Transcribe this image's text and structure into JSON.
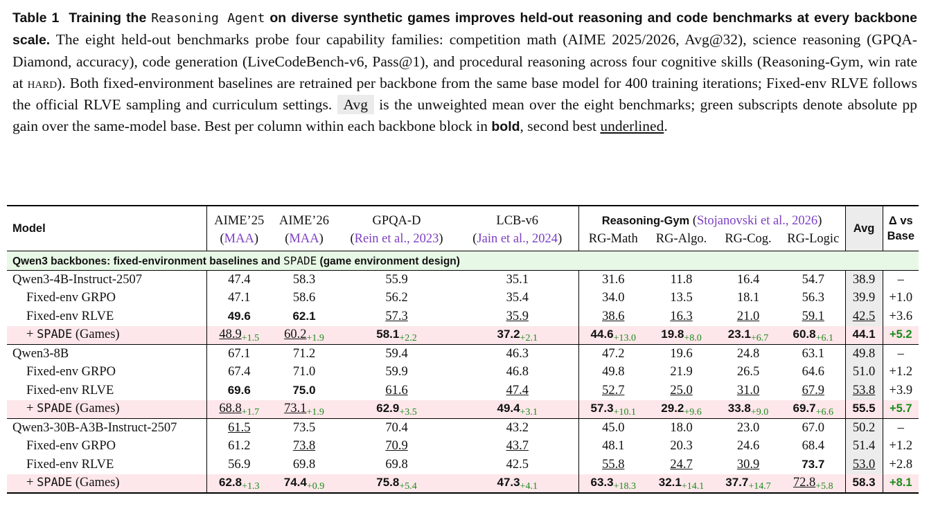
{
  "caption": {
    "label": "Table 1",
    "title_pre": "Training the",
    "title_mono": "Reasoning Agent",
    "title_post": "on diverse synthetic games improves held-out reasoning and code benchmarks at every backbone scale.",
    "body_1": "The eight held-out benchmarks probe four capability families: competition math (AIME 2025/2026, Avg@32), science reasoning (GPQA-Diamond, accuracy), code generation (LiveCodeBench-v6, Pass@1), and procedural reasoning across four cognitive skills (Reasoning-Gym, win rate at",
    "hard": "hard",
    "body_2": "). Both fixed-environment baselines are retrained per backbone from the same base model for 400 training iterations; Fixed-env RLVE follows the official RLVE sampling and curriculum settings.",
    "avg_label": "Avg",
    "body_3": "is the unweighted mean over the eight benchmarks; green subscripts denote absolute pp gain over the same-model base. Best per column within each backbone block in",
    "bold_word": "bold",
    "body_4": ", second best",
    "underlined_word": "underlined",
    "body_5": "."
  },
  "header": {
    "model": "Model",
    "aime25": "AIME’25",
    "aime25_cite": "MAA",
    "aime26": "AIME’26",
    "aime26_cite": "MAA",
    "gpqa": "GPQA-D",
    "gpqa_cite": "Rein et al., 2023",
    "lcb": "LCB-v6",
    "lcb_cite": "Jain et al., 2024",
    "rg": "Reasoning-Gym",
    "rg_cite": "Stojanovski et al., 2026",
    "rg_math": "RG-Math",
    "rg_algo": "RG-Algo.",
    "rg_cog": "RG-Cog.",
    "rg_logic": "RG-Logic",
    "avg": "Avg",
    "delta_1": "Δ vs",
    "delta_2": "Base"
  },
  "section": {
    "pre": "Qwen3 backbones: fixed-environment baselines and",
    "mono": "SPADE",
    "post": "(game environment design)"
  },
  "spade_label": {
    "plus": "+",
    "mono": "SPADE",
    "post": "(Games)"
  },
  "blocks": [
    {
      "rows": [
        {
          "name": "Qwen3-4B-Instruct-2507",
          "indent": false,
          "spade": false,
          "cells": [
            {
              "v": "47.4"
            },
            {
              "v": "58.3"
            },
            {
              "v": "55.9"
            },
            {
              "v": "35.1"
            },
            {
              "v": "31.6"
            },
            {
              "v": "11.8"
            },
            {
              "v": "16.4"
            },
            {
              "v": "54.7"
            }
          ],
          "avg": {
            "v": "38.9"
          },
          "delta": "–"
        },
        {
          "name": "Fixed-env GRPO",
          "indent": true,
          "spade": false,
          "cells": [
            {
              "v": "47.1"
            },
            {
              "v": "58.6"
            },
            {
              "v": "56.2"
            },
            {
              "v": "35.4"
            },
            {
              "v": "34.0"
            },
            {
              "v": "13.5"
            },
            {
              "v": "18.1"
            },
            {
              "v": "56.3"
            }
          ],
          "avg": {
            "v": "39.9"
          },
          "delta": "+1.0"
        },
        {
          "name": "Fixed-env RLVE",
          "indent": true,
          "spade": false,
          "cells": [
            {
              "v": "49.6",
              "s": "b"
            },
            {
              "v": "62.1",
              "s": "b"
            },
            {
              "v": "57.3",
              "s": "u"
            },
            {
              "v": "35.9",
              "s": "u"
            },
            {
              "v": "38.6",
              "s": "u"
            },
            {
              "v": "16.3",
              "s": "u"
            },
            {
              "v": "21.0",
              "s": "u"
            },
            {
              "v": "59.1",
              "s": "u"
            }
          ],
          "avg": {
            "v": "42.5",
            "s": "u"
          },
          "delta": "+3.6"
        },
        {
          "name": "",
          "indent": true,
          "spade": true,
          "cells": [
            {
              "v": "48.9",
              "s": "u",
              "g": "+1.5"
            },
            {
              "v": "60.2",
              "s": "u",
              "g": "+1.9"
            },
            {
              "v": "58.1",
              "s": "b",
              "g": "+2.2"
            },
            {
              "v": "37.2",
              "s": "b",
              "g": "+2.1"
            },
            {
              "v": "44.6",
              "s": "b",
              "g": "+13.0"
            },
            {
              "v": "19.8",
              "s": "b",
              "g": "+8.0"
            },
            {
              "v": "23.1",
              "s": "b",
              "g": "+6.7"
            },
            {
              "v": "60.8",
              "s": "b",
              "g": "+6.1"
            }
          ],
          "avg": {
            "v": "44.1",
            "s": "b"
          },
          "delta": "+5.2"
        }
      ]
    },
    {
      "rows": [
        {
          "name": "Qwen3-8B",
          "indent": false,
          "spade": false,
          "cells": [
            {
              "v": "67.1"
            },
            {
              "v": "71.2"
            },
            {
              "v": "59.4"
            },
            {
              "v": "46.3"
            },
            {
              "v": "47.2"
            },
            {
              "v": "19.6"
            },
            {
              "v": "24.8"
            },
            {
              "v": "63.1"
            }
          ],
          "avg": {
            "v": "49.8"
          },
          "delta": "–"
        },
        {
          "name": "Fixed-env GRPO",
          "indent": true,
          "spade": false,
          "cells": [
            {
              "v": "67.4"
            },
            {
              "v": "71.0"
            },
            {
              "v": "59.9"
            },
            {
              "v": "46.8"
            },
            {
              "v": "49.8"
            },
            {
              "v": "21.9"
            },
            {
              "v": "26.5"
            },
            {
              "v": "64.6"
            }
          ],
          "avg": {
            "v": "51.0"
          },
          "delta": "+1.2"
        },
        {
          "name": "Fixed-env RLVE",
          "indent": true,
          "spade": false,
          "cells": [
            {
              "v": "69.6",
              "s": "b"
            },
            {
              "v": "75.0",
              "s": "b"
            },
            {
              "v": "61.6",
              "s": "u"
            },
            {
              "v": "47.4",
              "s": "u"
            },
            {
              "v": "52.7",
              "s": "u"
            },
            {
              "v": "25.0",
              "s": "u"
            },
            {
              "v": "31.0",
              "s": "u"
            },
            {
              "v": "67.9",
              "s": "u"
            }
          ],
          "avg": {
            "v": "53.8",
            "s": "u"
          },
          "delta": "+3.9"
        },
        {
          "name": "",
          "indent": true,
          "spade": true,
          "cells": [
            {
              "v": "68.8",
              "s": "u",
              "g": "+1.7"
            },
            {
              "v": "73.1",
              "s": "u",
              "g": "+1.9"
            },
            {
              "v": "62.9",
              "s": "b",
              "g": "+3.5"
            },
            {
              "v": "49.4",
              "s": "b",
              "g": "+3.1"
            },
            {
              "v": "57.3",
              "s": "b",
              "g": "+10.1"
            },
            {
              "v": "29.2",
              "s": "b",
              "g": "+9.6"
            },
            {
              "v": "33.8",
              "s": "b",
              "g": "+9.0"
            },
            {
              "v": "69.7",
              "s": "b",
              "g": "+6.6"
            }
          ],
          "avg": {
            "v": "55.5",
            "s": "b"
          },
          "delta": "+5.7"
        }
      ]
    },
    {
      "rows": [
        {
          "name": "Qwen3-30B-A3B-Instruct-2507",
          "indent": false,
          "spade": false,
          "cells": [
            {
              "v": "61.5",
              "s": "u"
            },
            {
              "v": "73.5"
            },
            {
              "v": "70.4"
            },
            {
              "v": "43.2"
            },
            {
              "v": "45.0"
            },
            {
              "v": "18.0"
            },
            {
              "v": "23.0"
            },
            {
              "v": "67.0"
            }
          ],
          "avg": {
            "v": "50.2"
          },
          "delta": "–"
        },
        {
          "name": "Fixed-env GRPO",
          "indent": true,
          "spade": false,
          "cells": [
            {
              "v": "61.2"
            },
            {
              "v": "73.8",
              "s": "u"
            },
            {
              "v": "70.9",
              "s": "u"
            },
            {
              "v": "43.7",
              "s": "u"
            },
            {
              "v": "48.1"
            },
            {
              "v": "20.3"
            },
            {
              "v": "24.6"
            },
            {
              "v": "68.4"
            }
          ],
          "avg": {
            "v": "51.4"
          },
          "delta": "+1.2"
        },
        {
          "name": "Fixed-env RLVE",
          "indent": true,
          "spade": false,
          "cells": [
            {
              "v": "56.9"
            },
            {
              "v": "69.8"
            },
            {
              "v": "69.8"
            },
            {
              "v": "42.5"
            },
            {
              "v": "55.8",
              "s": "u"
            },
            {
              "v": "24.7",
              "s": "u"
            },
            {
              "v": "30.9",
              "s": "u"
            },
            {
              "v": "73.7",
              "s": "b"
            }
          ],
          "avg": {
            "v": "53.0",
            "s": "u"
          },
          "delta": "+2.8"
        },
        {
          "name": "",
          "indent": true,
          "spade": true,
          "cells": [
            {
              "v": "62.8",
              "s": "b",
              "g": "+1.3"
            },
            {
              "v": "74.4",
              "s": "b",
              "g": "+0.9"
            },
            {
              "v": "75.8",
              "s": "b",
              "g": "+5.4"
            },
            {
              "v": "47.3",
              "s": "b",
              "g": "+4.1"
            },
            {
              "v": "63.3",
              "s": "b",
              "g": "+18.3"
            },
            {
              "v": "32.1",
              "s": "b",
              "g": "+14.1"
            },
            {
              "v": "37.7",
              "s": "b",
              "g": "+14.7"
            },
            {
              "v": "72.8",
              "s": "u",
              "g": "+5.8"
            }
          ],
          "avg": {
            "v": "58.3",
            "s": "b"
          },
          "delta": "+8.1"
        }
      ]
    }
  ]
}
